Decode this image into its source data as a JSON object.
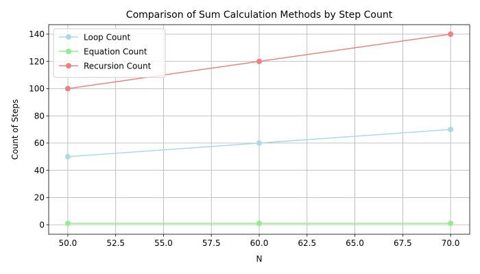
{
  "chart_data": {
    "type": "line",
    "title": "Comparison of Sum Calculation Methods by Step Count",
    "xlabel": "N",
    "ylabel": "Count of Steps",
    "x": [
      50,
      60,
      70
    ],
    "xlim": [
      49,
      71
    ],
    "ylim": [
      -7,
      147
    ],
    "xticks": [
      50.0,
      52.5,
      55.0,
      57.5,
      60.0,
      62.5,
      65.0,
      67.5,
      70.0
    ],
    "xtick_labels": [
      "50.0",
      "52.5",
      "55.0",
      "57.5",
      "60.0",
      "62.5",
      "65.0",
      "67.5",
      "70.0"
    ],
    "yticks": [
      0,
      20,
      40,
      60,
      80,
      100,
      120,
      140
    ],
    "ytick_labels": [
      "0",
      "20",
      "40",
      "60",
      "80",
      "100",
      "120",
      "140"
    ],
    "grid": true,
    "legend_position": "upper-left",
    "series": [
      {
        "name": "Loop Count",
        "color": "#add8e6",
        "marker": "circle",
        "values": [
          50,
          60,
          70
        ]
      },
      {
        "name": "Equation Count",
        "color": "#90ee90",
        "marker": "circle",
        "values": [
          1,
          1,
          1
        ]
      },
      {
        "name": "Recursion Count",
        "color": "#f08080",
        "marker": "circle",
        "values": [
          100,
          120,
          140
        ]
      }
    ]
  }
}
